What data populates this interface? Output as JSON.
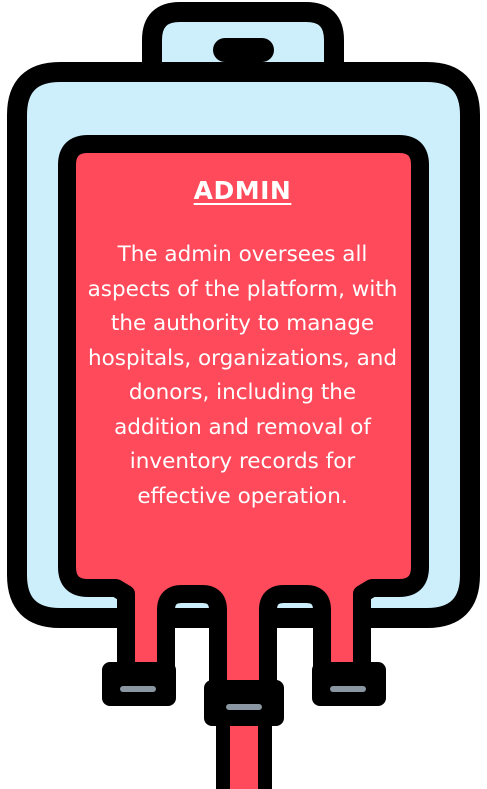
{
  "card": {
    "title": "ADMIN",
    "description": "The admin oversees all aspects of the platform, with the authority to manage hospitals, organizations, and donors, including the addition and removal of inventory records for effective operation."
  },
  "colors": {
    "outline": "#000000",
    "bag_fill": "#cdeefb",
    "blood": "#fe4a5b",
    "text": "#ffffff",
    "cap_slot": "#8a97a3"
  },
  "icons": {
    "illustration": "blood-bag-icon"
  }
}
